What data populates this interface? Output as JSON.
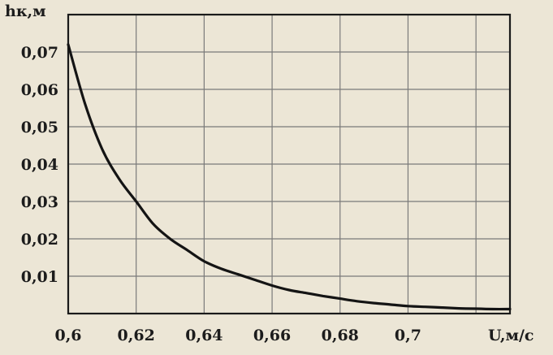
{
  "chart_data": {
    "type": "line",
    "title": "",
    "xlabel": "U,м/с",
    "ylabel": "hк,м",
    "xlim": [
      0.6,
      0.73
    ],
    "ylim": [
      0,
      0.08
    ],
    "x_ticks": [
      "0,6",
      "0,62",
      "0,64",
      "0,66",
      "0,68",
      "0,7"
    ],
    "y_ticks": [
      "0,01",
      "0,02",
      "0,03",
      "0,04",
      "0,05",
      "0,06",
      "0,07"
    ],
    "grid": true,
    "legend": "none",
    "series": [
      {
        "x": [
          0.6,
          0.605,
          0.61,
          0.615,
          0.62,
          0.625,
          0.63,
          0.635,
          0.64,
          0.645,
          0.65,
          0.655,
          0.66,
          0.665,
          0.67,
          0.675,
          0.68,
          0.685,
          0.69,
          0.695,
          0.7,
          0.705,
          0.71,
          0.715,
          0.72,
          0.725,
          0.73
        ],
        "y": [
          0.072,
          0.056,
          0.044,
          0.036,
          0.03,
          0.024,
          0.02,
          0.017,
          0.014,
          0.012,
          0.0105,
          0.009,
          0.0075,
          0.0063,
          0.0055,
          0.0047,
          0.004,
          0.0033,
          0.0028,
          0.0024,
          0.002,
          0.0018,
          0.0016,
          0.0014,
          0.0013,
          0.0012,
          0.0012
        ]
      }
    ]
  }
}
